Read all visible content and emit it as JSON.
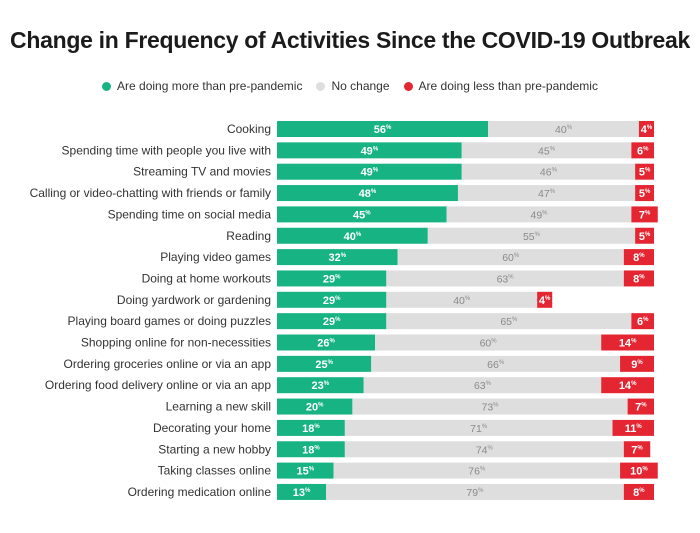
{
  "chart_data": {
    "type": "bar",
    "stacked": true,
    "orientation": "horizontal",
    "title": "Change in Frequency of Activities Since the COVID-19 Outbreak",
    "value_suffix": "%",
    "xlim": [
      0,
      100
    ],
    "legend_placement": "top",
    "categories": [
      "Cooking",
      "Spending time with people you live with",
      "Streaming TV and movies",
      "Calling or video-chatting with friends or family",
      "Spending time on social media",
      "Reading",
      "Playing video games",
      "Doing at home workouts",
      "Doing yardwork or gardening",
      "Playing board games or doing puzzles",
      "Shopping online for non-necessities",
      "Ordering groceries online or via an app",
      "Ordering food delivery online or via an app",
      "Learning a new skill",
      "Decorating your home",
      "Starting a new hobby",
      "Taking classes online",
      "Ordering medication online"
    ],
    "series": [
      {
        "name": "Are doing more than pre-pandemic",
        "color": "#17b383",
        "values": [
          56,
          49,
          49,
          48,
          45,
          40,
          32,
          29,
          29,
          29,
          26,
          25,
          23,
          20,
          18,
          18,
          15,
          13
        ]
      },
      {
        "name": "No change",
        "color": "#dedede",
        "values": [
          40,
          45,
          46,
          47,
          49,
          55,
          60,
          63,
          40,
          65,
          60,
          66,
          63,
          73,
          71,
          74,
          76,
          79
        ]
      },
      {
        "name": "Are doing less than pre-pandemic",
        "color": "#e32632",
        "values": [
          4,
          6,
          5,
          5,
          7,
          5,
          8,
          8,
          4,
          6,
          14,
          9,
          14,
          7,
          11,
          7,
          10,
          8
        ]
      }
    ]
  }
}
